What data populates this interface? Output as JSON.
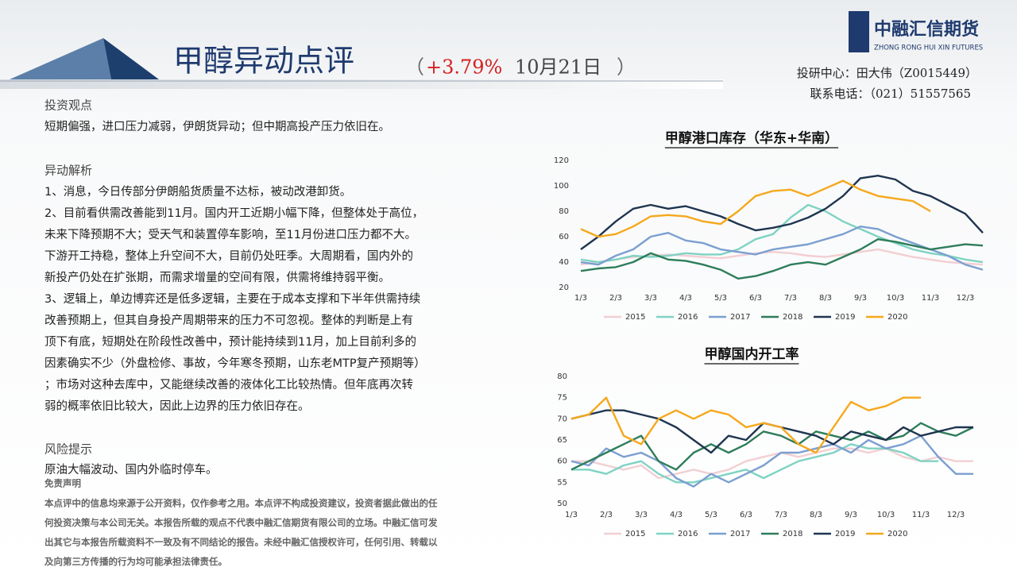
{
  "header": {
    "title": "甲醇异动点评",
    "paren_open": "（",
    "change": "+3.79%",
    "date": "10月21日",
    "paren_close": "）"
  },
  "logo": {
    "name": "中融汇信期货",
    "english": "ZHONG RONG HUI XIN FUTURES"
  },
  "contact": [
    "投研中心：田大伟（Z0015449）",
    "联系电话：（021）51557565"
  ],
  "sections": [
    {
      "heading": "投资观点",
      "lines": [
        "短期偏强，进口压力减弱，伊朗货异动；但中期高投产压力依旧在。"
      ]
    },
    {
      "heading": "异动解析",
      "lines": [
        "1、消息，今日传部分伊朗船货质量不达标，被动改港卸货。",
        "2、目前看供需改善能到11月。国内开工近期小幅下降，但整体处于高位，",
        "未来下降预期不大；受天气和装置停车影响，至11月份进口压力都不大。",
        "下游开工持稳，整体上升空间不大，目前仍处旺季。大周期看，国内外的",
        "新投产仍处在扩张期，而需求增量的空间有限，供需将维持弱平衡。",
        "3、逻辑上，单边博弈还是低多逻辑，主要在于成本支撑和下半年供需持续",
        "改善预期上，但其自身投产周期带来的压力不可忽视。整体的判断是上有",
        "顶下有底，短期处在阶段性改善中，预计能持续到11月，加上目前利多的",
        "因素确实不少（外盘检修、事故，今年寒冬预期，山东老MTP复产预期等）",
        "；市场对这种去库中，又能继续改善的液体化工比较热情。但年底再次转",
        "弱的概率依旧比较大，因此上边界的压力依旧存在。"
      ]
    },
    {
      "heading": "风险提示",
      "lines": [
        "原油大幅波动、国内外临时停车。"
      ]
    }
  ],
  "disclaimer": {
    "heading": "免责声明",
    "lines": [
      "本点评中的信息均来源于公开资料，仅作参考之用。本点评不构成投资建议，投资者据此做出的任",
      "何投资决策与本公司无关。本报告所载的观点不代表中融汇信期货有限公司的立场。中融汇信可发",
      "出其它与本报告所载资料不一致及有不同结论的报告。未经中融汇信授权许可，任何引用、转载以",
      "及向第三方传播的行为均可能承担法律责任。"
    ]
  },
  "chart_data": [
    {
      "type": "line",
      "title": "甲醇港口库存（华东+华南）",
      "categories": [
        "1/3",
        null,
        "2/3",
        null,
        "3/3",
        null,
        "4/3",
        null,
        "5/3",
        null,
        "6/3",
        null,
        "7/3",
        null,
        "8/3",
        null,
        "9/3",
        null,
        "10/3",
        null,
        "11/3",
        null,
        "12/3",
        null
      ],
      "ylim": [
        20,
        120
      ],
      "yticks": [
        20,
        40,
        60,
        80,
        100,
        120
      ],
      "grid": false,
      "legend": "bottom",
      "series": [
        {
          "name": "2015",
          "color": "#f2cfd2",
          "values": [
            38,
            40,
            42,
            44,
            45,
            46,
            45,
            44,
            43,
            45,
            47,
            48,
            47,
            45,
            44,
            46,
            48,
            50,
            47,
            44,
            42,
            40,
            39,
            38
          ]
        },
        {
          "name": "2016",
          "color": "#7fd3c3",
          "values": [
            42,
            40,
            42,
            45,
            44,
            45,
            47,
            46,
            46,
            50,
            58,
            62,
            75,
            85,
            80,
            72,
            66,
            60,
            55,
            50,
            47,
            45,
            42,
            40
          ]
        },
        {
          "name": "2017",
          "color": "#7b9fd0",
          "values": [
            40,
            38,
            45,
            50,
            60,
            63,
            57,
            55,
            50,
            48,
            46,
            50,
            52,
            54,
            58,
            62,
            68,
            66,
            60,
            55,
            50,
            45,
            38,
            34
          ]
        },
        {
          "name": "2018",
          "color": "#2e7d5b",
          "values": [
            33,
            35,
            36,
            40,
            47,
            42,
            41,
            38,
            34,
            27,
            29,
            33,
            38,
            40,
            38,
            44,
            50,
            58,
            56,
            53,
            50,
            52,
            54,
            53
          ]
        },
        {
          "name": "2019",
          "color": "#1f3550",
          "values": [
            50,
            60,
            72,
            82,
            85,
            82,
            84,
            80,
            76,
            70,
            65,
            67,
            70,
            75,
            82,
            92,
            106,
            108,
            105,
            96,
            92,
            85,
            78,
            63
          ]
        },
        {
          "name": "2020",
          "color": "#f5a81c",
          "values": [
            66,
            60,
            62,
            68,
            76,
            77,
            76,
            72,
            70,
            80,
            92,
            96,
            97,
            92,
            98,
            104,
            97,
            92,
            90,
            88,
            80,
            null,
            null,
            null
          ]
        }
      ]
    },
    {
      "type": "line",
      "title": "甲醇国内开工率",
      "categories": [
        "1/3",
        null,
        "2/3",
        null,
        "3/3",
        null,
        "4/3",
        null,
        "5/3",
        null,
        "6/3",
        null,
        "7/3",
        null,
        "8/3",
        null,
        "9/3",
        null,
        "10/3",
        null,
        "11/3",
        null,
        "12/3",
        null
      ],
      "ylim": [
        50,
        80
      ],
      "yticks": [
        50,
        55,
        60,
        65,
        70,
        75,
        80
      ],
      "grid": false,
      "legend": "bottom",
      "series": [
        {
          "name": "2015",
          "color": "#f2cfd2",
          "values": [
            60,
            60,
            59,
            58,
            59,
            56,
            57,
            58,
            57,
            58,
            60,
            61,
            62,
            61,
            62,
            63,
            63,
            62,
            63,
            61,
            60,
            61,
            60,
            60
          ]
        },
        {
          "name": "2016",
          "color": "#7fd3c3",
          "values": [
            58,
            58,
            57,
            59,
            60,
            57,
            55,
            55,
            56,
            57,
            58,
            56,
            58,
            60,
            61,
            62,
            64,
            63,
            63,
            62,
            60,
            60,
            null,
            null
          ]
        },
        {
          "name": "2017",
          "color": "#7b9fd0",
          "values": [
            60,
            59,
            63,
            61,
            62,
            60,
            56,
            54,
            57,
            55,
            57,
            59,
            62,
            62,
            63,
            64,
            62,
            65,
            63,
            64,
            66,
            61,
            57,
            57
          ]
        },
        {
          "name": "2018",
          "color": "#2e7d5b",
          "values": [
            58,
            60,
            62,
            64,
            66,
            60,
            58,
            62,
            64,
            62,
            64,
            67,
            66,
            64,
            67,
            66,
            65,
            67,
            65,
            66,
            69,
            67,
            66,
            68
          ]
        },
        {
          "name": "2019",
          "color": "#1f3550",
          "values": [
            70,
            71,
            72,
            72,
            71,
            70,
            68,
            65,
            62,
            66,
            65,
            69,
            68,
            67,
            66,
            64,
            67,
            66,
            65,
            68,
            66,
            67,
            68,
            68
          ]
        },
        {
          "name": "2020",
          "color": "#f5a81c",
          "values": [
            70,
            71,
            75,
            66,
            64,
            70,
            72,
            70,
            72,
            71,
            68,
            69,
            68,
            64,
            62,
            68,
            74,
            72,
            73,
            75,
            75,
            null,
            null,
            null
          ]
        }
      ]
    }
  ]
}
